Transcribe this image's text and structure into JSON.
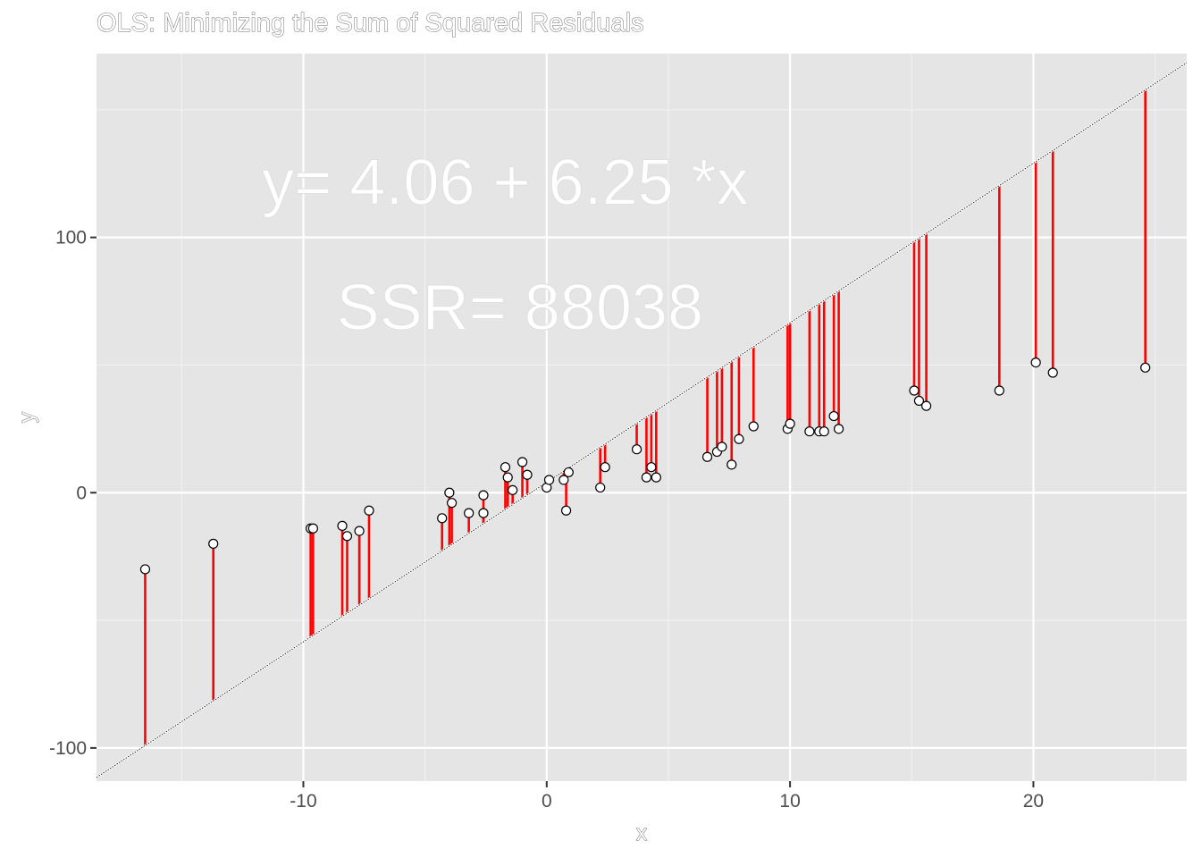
{
  "chart_data": {
    "type": "scatter",
    "title": "OLS: Minimizing the Sum of Squared Residuals",
    "xlabel": "x",
    "ylabel": "y",
    "xlim": [
      -18.5,
      26.3
    ],
    "ylim": [
      -113,
      172
    ],
    "x_ticks": [
      -10,
      0,
      10,
      20
    ],
    "y_ticks": [
      -100,
      0,
      100
    ],
    "x_tick_labels": [
      "-10",
      "0",
      "10",
      "20"
    ],
    "y_tick_labels": [
      "-100",
      "0",
      "100"
    ],
    "grid": true,
    "fitted_line": {
      "intercept": 4.06,
      "slope": 6.25
    },
    "annotations": [
      "y= 4.06 + 6.25 *x",
      "SSR= 88038"
    ],
    "points": [
      [
        -16.5,
        -30
      ],
      [
        -13.7,
        -20
      ],
      [
        -9.7,
        -14
      ],
      [
        -9.6,
        -14
      ],
      [
        -8.4,
        -13
      ],
      [
        -8.2,
        -17
      ],
      [
        -7.7,
        -15
      ],
      [
        -7.3,
        -7
      ],
      [
        -4.3,
        -10
      ],
      [
        -4.0,
        0
      ],
      [
        -3.9,
        -4
      ],
      [
        -3.2,
        -8
      ],
      [
        -2.6,
        -1
      ],
      [
        -2.6,
        -8
      ],
      [
        -1.7,
        10
      ],
      [
        -1.6,
        6
      ],
      [
        -1.4,
        1
      ],
      [
        -1.0,
        12
      ],
      [
        -0.8,
        7
      ],
      [
        0.0,
        2
      ],
      [
        0.1,
        5
      ],
      [
        0.7,
        5
      ],
      [
        0.8,
        -7
      ],
      [
        0.9,
        8
      ],
      [
        2.2,
        2
      ],
      [
        2.4,
        10
      ],
      [
        3.7,
        17
      ],
      [
        4.1,
        6
      ],
      [
        4.3,
        10
      ],
      [
        4.5,
        6
      ],
      [
        6.6,
        14
      ],
      [
        7.0,
        16
      ],
      [
        7.2,
        18
      ],
      [
        7.6,
        11
      ],
      [
        7.9,
        21
      ],
      [
        8.5,
        26
      ],
      [
        9.9,
        25
      ],
      [
        10.0,
        27
      ],
      [
        10.8,
        24
      ],
      [
        11.2,
        24
      ],
      [
        11.4,
        24
      ],
      [
        11.8,
        30
      ],
      [
        12.0,
        25
      ],
      [
        15.1,
        40
      ],
      [
        15.3,
        36
      ],
      [
        15.6,
        34
      ],
      [
        18.6,
        40
      ],
      [
        20.1,
        51
      ],
      [
        20.8,
        47
      ],
      [
        24.6,
        49
      ]
    ]
  }
}
